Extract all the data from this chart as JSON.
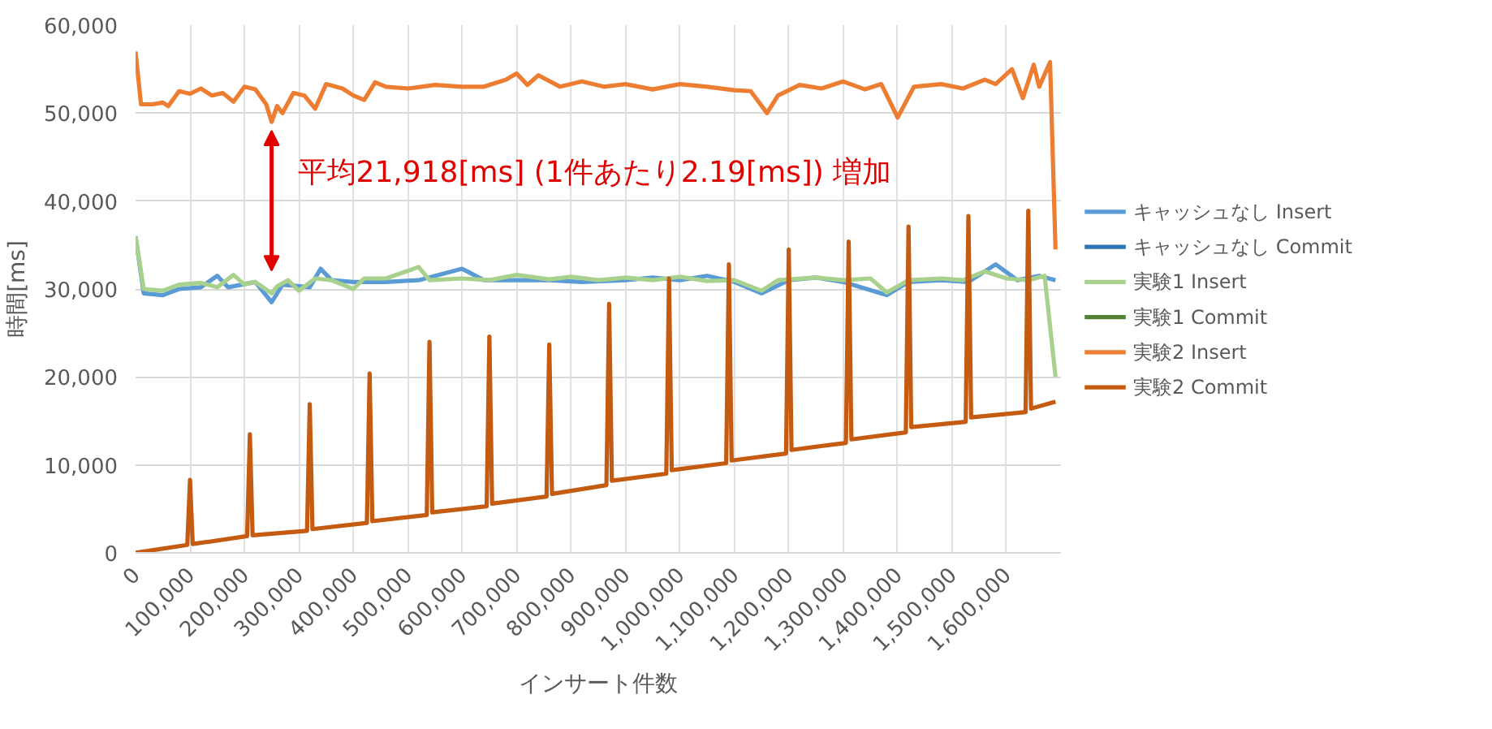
{
  "chart_data": {
    "type": "line",
    "xlabel": "インサート件数",
    "ylabel": "時間[ms]",
    "xlim": [
      0,
      1700000
    ],
    "xticks": [
      0,
      {
        "value": 100000,
        "label": "100,000"
      },
      {
        "value": 200000,
        "label": "200,000"
      },
      {
        "value": 300000,
        "label": "300,000"
      },
      {
        "value": 400000,
        "label": "400,000"
      },
      {
        "value": 500000,
        "label": "500,000"
      },
      {
        "value": 600000,
        "label": "600,000"
      },
      {
        "value": 700000,
        "label": "700,000"
      },
      {
        "value": 800000,
        "label": "800,000"
      },
      {
        "value": 900000,
        "label": "900,000"
      },
      {
        "value": 1000000,
        "label": "1,000,000"
      },
      {
        "value": 1100000,
        "label": "1,100,000"
      },
      {
        "value": 1200000,
        "label": "1,200,000"
      },
      {
        "value": 1300000,
        "label": "1,300,000"
      },
      {
        "value": 1400000,
        "label": "1,400,000"
      },
      {
        "value": 1500000,
        "label": "1,500,000"
      },
      {
        "value": 1600000,
        "label": "1,600,000"
      }
    ],
    "ylim": [
      0,
      60000
    ],
    "yticks": [
      0,
      {
        "value": 10000,
        "label": "10,000"
      },
      {
        "value": 20000,
        "label": "20,000"
      },
      {
        "value": 30000,
        "label": "30,000"
      },
      {
        "value": 40000,
        "label": "40,000"
      },
      {
        "value": 50000,
        "label": "50,000"
      },
      {
        "value": 60000,
        "label": "60,000"
      }
    ],
    "grid": true,
    "legend": "right",
    "annotations": [
      "平均21,918[ms] (1件あたり2.19[ms]) 増加"
    ],
    "series": [
      {
        "name": "キャッシュなし Insert",
        "color": "#5b9bd5",
        "x": [
          0,
          15000,
          50000,
          80000,
          120000,
          150000,
          170000,
          220000,
          250000,
          270000,
          320000,
          340000,
          360000,
          400000,
          460000,
          520000,
          600000,
          640000,
          700000,
          760000,
          820000,
          900000,
          950000,
          1000000,
          1050000,
          1100000,
          1150000,
          1200000,
          1250000,
          1300000,
          1380000,
          1420000,
          1480000,
          1530000,
          1580000,
          1620000,
          1660000,
          1690000
        ],
        "values": [
          36000,
          29500,
          29300,
          30000,
          30200,
          31500,
          30200,
          30800,
          28500,
          30500,
          30200,
          32300,
          31000,
          30800,
          30800,
          31000,
          32300,
          31000,
          31000,
          31000,
          30800,
          31000,
          31300,
          31000,
          31500,
          30800,
          29500,
          31000,
          31300,
          30800,
          29300,
          30800,
          31000,
          30800,
          32800,
          31000,
          31500,
          31000
        ]
      },
      {
        "name": "キャッシュなし Commit",
        "color": "#2e75b6"
      },
      {
        "name": "実験1 Insert",
        "color": "#a9d18e",
        "x": [
          0,
          15000,
          50000,
          80000,
          120000,
          150000,
          180000,
          200000,
          220000,
          250000,
          260000,
          280000,
          300000,
          330000,
          360000,
          400000,
          420000,
          460000,
          520000,
          540000,
          600000,
          650000,
          700000,
          760000,
          800000,
          850000,
          900000,
          950000,
          1000000,
          1050000,
          1100000,
          1150000,
          1180000,
          1250000,
          1300000,
          1350000,
          1380000,
          1420000,
          1480000,
          1520000,
          1560000,
          1600000,
          1640000,
          1670000,
          1690000
        ],
        "values": [
          36000,
          30000,
          29800,
          30500,
          30700,
          30200,
          31600,
          30500,
          30800,
          29500,
          30300,
          31000,
          29800,
          31200,
          31000,
          30000,
          31200,
          31200,
          32500,
          31000,
          31200,
          31000,
          31600,
          31100,
          31400,
          31000,
          31300,
          31000,
          31400,
          30900,
          31000,
          29800,
          31000,
          31300,
          31000,
          31200,
          29600,
          31000,
          31200,
          31000,
          32000,
          31200,
          31000,
          31500,
          20000
        ]
      },
      {
        "name": "実験1 Commit",
        "color": "#548235"
      },
      {
        "name": "実験2 Insert",
        "color": "#ed7d31",
        "x": [
          0,
          10000,
          30000,
          50000,
          60000,
          80000,
          100000,
          120000,
          140000,
          160000,
          180000,
          200000,
          220000,
          240000,
          250000,
          260000,
          270000,
          290000,
          310000,
          330000,
          350000,
          380000,
          400000,
          420000,
          440000,
          460000,
          500000,
          550000,
          600000,
          640000,
          680000,
          700000,
          720000,
          740000,
          780000,
          820000,
          860000,
          900000,
          950000,
          1000000,
          1050000,
          1100000,
          1130000,
          1160000,
          1180000,
          1220000,
          1260000,
          1300000,
          1340000,
          1370000,
          1400000,
          1430000,
          1480000,
          1520000,
          1560000,
          1580000,
          1610000,
          1630000,
          1650000,
          1660000,
          1680000,
          1690000
        ],
        "values": [
          57000,
          51000,
          51000,
          51200,
          50800,
          52500,
          52200,
          52800,
          52000,
          52300,
          51300,
          53000,
          52700,
          51000,
          49000,
          50800,
          50000,
          52300,
          52000,
          50500,
          53300,
          52800,
          52000,
          51500,
          53500,
          53000,
          52800,
          53200,
          53000,
          53000,
          53800,
          54500,
          53200,
          54300,
          53000,
          53600,
          53000,
          53300,
          52700,
          53300,
          53000,
          52600,
          52500,
          50000,
          52000,
          53200,
          52800,
          53600,
          52700,
          53300,
          49500,
          53000,
          53300,
          52800,
          53800,
          53300,
          55000,
          51700,
          55500,
          53000,
          55800,
          34500
        ]
      },
      {
        "name": "実験2 Commit",
        "color": "#c55a11",
        "x": [
          0,
          95000,
          100000,
          105000,
          205000,
          210000,
          215000,
          315000,
          320000,
          325000,
          425000,
          430000,
          435000,
          535000,
          540000,
          545000,
          645000,
          650000,
          655000,
          755000,
          760000,
          765000,
          865000,
          870000,
          875000,
          975000,
          980000,
          985000,
          1085000,
          1090000,
          1095000,
          1195000,
          1200000,
          1205000,
          1305000,
          1310000,
          1315000,
          1415000,
          1420000,
          1425000,
          1525000,
          1530000,
          1535000,
          1635000,
          1640000,
          1645000,
          1690000
        ],
        "values": [
          0,
          900,
          8300,
          1000,
          1900,
          13500,
          2000,
          2500,
          16900,
          2700,
          3400,
          20400,
          3600,
          4300,
          24000,
          4600,
          5300,
          24600,
          5600,
          6400,
          23700,
          6700,
          7700,
          28300,
          8200,
          9000,
          31200,
          9400,
          10200,
          32800,
          10500,
          11300,
          34500,
          11700,
          12500,
          35400,
          12900,
          13700,
          37100,
          14300,
          14900,
          38300,
          15400,
          16000,
          38900,
          16400,
          17200
        ]
      }
    ]
  }
}
